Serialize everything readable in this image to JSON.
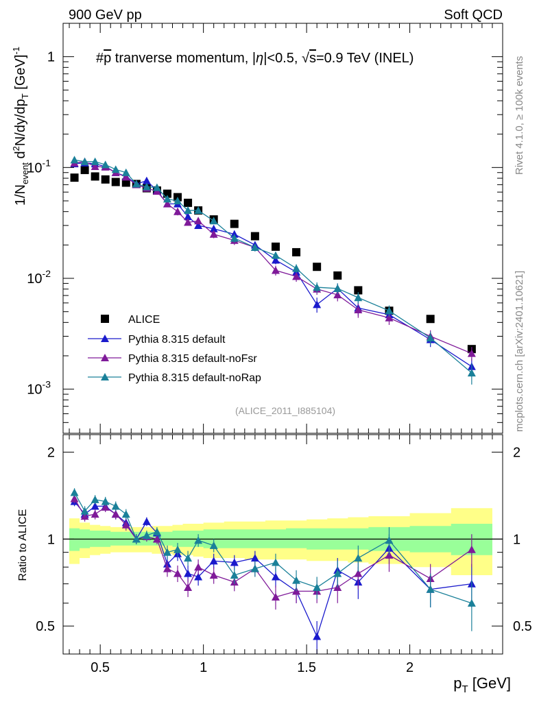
{
  "header": {
    "left": "900 GeV pp",
    "right": "Soft QCD"
  },
  "side_labels": {
    "rivet": "Rivet 4.1.0, ≥ 100k events",
    "mcplots": "mcplots.cern.ch [arXiv:2401.10621]"
  },
  "analysis_tag": "(ALICE_2011_I885104)",
  "colors": {
    "alice": "#000000",
    "default": "#1a1acc",
    "noFsr": "#7f1a99",
    "noRap": "#1a8099",
    "band_outer": "#ffff88",
    "band_inner": "#99ff99"
  },
  "chart_data": [
    {
      "type": "scatter",
      "title": "#p̄ tranverse momentum, |η|<0.5, √s=0.9 TeV (INEL)",
      "title_parts": {
        "prefix": "#",
        "p": "p",
        "mid1": " tranverse momentum, ",
        "eta": "η",
        "mid2": "|<0.5, ",
        "sqrt": "√",
        "s": "s",
        "suffix": "=0.9 TeV (INEL)"
      },
      "ylabel": "1/N_event d²N/dy/dp_T [GeV]⁻¹",
      "ylabel_parts": {
        "a": "1/N",
        "sub_a": "event",
        "b": " d",
        "sup_b": "2",
        "c": "N/dy/dp",
        "sub_c": "T",
        "d": " [GeV]",
        "sup_d": "-1"
      },
      "yscale": "log",
      "ylim": [
        0.0004,
        2.0
      ],
      "xlim": [
        0.32,
        2.45
      ],
      "ytick_labels": [
        {
          "value": 1,
          "base": "1",
          "exp": ""
        },
        {
          "value": 0.1,
          "base": "10",
          "exp": "-1"
        },
        {
          "value": 0.01,
          "base": "10",
          "exp": "-2"
        },
        {
          "value": 0.001,
          "base": "10",
          "exp": "-3"
        }
      ],
      "legend": [
        "ALICE",
        "Pythia 8.315 default",
        "Pythia 8.315 default-noFsr",
        "Pythia 8.315 default-noRap"
      ],
      "x": [
        0.375,
        0.425,
        0.475,
        0.525,
        0.575,
        0.625,
        0.675,
        0.725,
        0.775,
        0.825,
        0.875,
        0.925,
        0.975,
        1.05,
        1.15,
        1.25,
        1.35,
        1.45,
        1.55,
        1.65,
        1.75,
        1.9,
        2.1,
        2.3
      ],
      "series": [
        {
          "name": "ALICE",
          "marker": "square",
          "values": [
            0.081,
            0.095,
            0.083,
            0.078,
            0.074,
            0.073,
            0.071,
            0.065,
            0.062,
            0.058,
            0.054,
            0.048,
            0.041,
            0.034,
            0.031,
            0.024,
            0.0193,
            0.0172,
            0.0127,
            0.0106,
            0.0078,
            0.0051,
            0.0043,
            0.0023
          ]
        },
        {
          "name": "Pythia 8.315 default",
          "marker": "triangle",
          "values": [
            0.108,
            0.11,
            0.108,
            0.102,
            0.09,
            0.083,
            0.071,
            0.076,
            0.062,
            0.047,
            0.047,
            0.036,
            0.03,
            0.028,
            0.025,
            0.02,
            0.0146,
            0.0114,
            0.0058,
            0.0081,
            0.0054,
            0.0047,
            0.0028,
            0.0016
          ],
          "errors": [
            0.004,
            0.004,
            0.004,
            0.004,
            0.004,
            0.004,
            0.003,
            0.003,
            0.003,
            0.003,
            0.003,
            0.002,
            0.002,
            0.002,
            0.002,
            0.0015,
            0.0012,
            0.0011,
            0.0009,
            0.0009,
            0.0008,
            0.0006,
            0.0004,
            0.0003
          ]
        },
        {
          "name": "Pythia 8.315 default-noFsr",
          "marker": "triangle",
          "values": [
            0.11,
            0.113,
            0.102,
            0.101,
            0.09,
            0.082,
            0.07,
            0.065,
            0.061,
            0.047,
            0.04,
            0.032,
            0.033,
            0.025,
            0.022,
            0.019,
            0.0118,
            0.0104,
            0.008,
            0.0071,
            0.0052,
            0.0044,
            0.003,
            0.0021
          ],
          "errors": [
            0.004,
            0.004,
            0.004,
            0.004,
            0.004,
            0.004,
            0.003,
            0.003,
            0.003,
            0.003,
            0.003,
            0.002,
            0.002,
            0.002,
            0.002,
            0.0015,
            0.0012,
            0.0011,
            0.0009,
            0.0009,
            0.0008,
            0.0006,
            0.0004,
            0.0003
          ]
        },
        {
          "name": "Pythia 8.315 default-noRap",
          "marker": "triangle",
          "values": [
            0.117,
            0.113,
            0.113,
            0.106,
            0.096,
            0.09,
            0.071,
            0.067,
            0.066,
            0.052,
            0.05,
            0.041,
            0.041,
            0.033,
            0.023,
            0.019,
            0.0161,
            0.0123,
            0.0083,
            0.0081,
            0.0067,
            0.0051,
            0.0029,
            0.0014
          ],
          "errors": [
            0.004,
            0.004,
            0.004,
            0.004,
            0.004,
            0.004,
            0.003,
            0.003,
            0.003,
            0.003,
            0.003,
            0.002,
            0.002,
            0.002,
            0.002,
            0.0015,
            0.0012,
            0.0011,
            0.0009,
            0.0009,
            0.0008,
            0.0006,
            0.0004,
            0.0003
          ]
        }
      ]
    },
    {
      "type": "scatter",
      "title": "",
      "ylabel": "Ratio to ALICE",
      "xlabel": "p_T [GeV]",
      "xlabel_parts": {
        "p": "p",
        "sub": "T",
        "unit": " [GeV]"
      },
      "yscale": "log",
      "ylim": [
        0.4,
        2.3
      ],
      "xlim": [
        0.32,
        2.45
      ],
      "xtick_labels": [
        "0.5",
        "1",
        "1.5",
        "2"
      ],
      "ytick_labels": [
        "0.5",
        "1",
        "2"
      ],
      "reference_line": 1.0,
      "band_x_edges": [
        0.35,
        0.4,
        0.45,
        0.5,
        0.55,
        0.6,
        0.65,
        0.7,
        0.75,
        0.8,
        0.85,
        0.9,
        0.95,
        1.0,
        1.1,
        1.2,
        1.3,
        1.4,
        1.5,
        1.6,
        1.7,
        1.8,
        2.0,
        2.2,
        2.4
      ],
      "band_inner": {
        "low": [
          0.91,
          0.93,
          0.94,
          0.94,
          0.95,
          0.95,
          0.95,
          0.95,
          0.95,
          0.95,
          0.94,
          0.94,
          0.94,
          0.93,
          0.93,
          0.93,
          0.93,
          0.93,
          0.92,
          0.92,
          0.92,
          0.91,
          0.9,
          0.88
        ],
        "high": [
          1.09,
          1.08,
          1.07,
          1.07,
          1.06,
          1.06,
          1.06,
          1.06,
          1.06,
          1.06,
          1.07,
          1.07,
          1.07,
          1.08,
          1.08,
          1.08,
          1.08,
          1.09,
          1.09,
          1.09,
          1.09,
          1.1,
          1.11,
          1.13
        ]
      },
      "band_outer": {
        "low": [
          0.82,
          0.86,
          0.88,
          0.89,
          0.9,
          0.9,
          0.9,
          0.9,
          0.89,
          0.89,
          0.88,
          0.88,
          0.87,
          0.86,
          0.86,
          0.85,
          0.85,
          0.85,
          0.84,
          0.84,
          0.83,
          0.82,
          0.8,
          0.75
        ],
        "high": [
          1.18,
          1.14,
          1.12,
          1.11,
          1.1,
          1.1,
          1.1,
          1.1,
          1.11,
          1.11,
          1.12,
          1.13,
          1.13,
          1.14,
          1.15,
          1.15,
          1.16,
          1.16,
          1.17,
          1.18,
          1.19,
          1.2,
          1.23,
          1.28
        ]
      },
      "x": [
        0.375,
        0.425,
        0.475,
        0.525,
        0.575,
        0.625,
        0.675,
        0.725,
        0.775,
        0.825,
        0.875,
        0.925,
        0.975,
        1.05,
        1.15,
        1.25,
        1.35,
        1.45,
        1.55,
        1.65,
        1.75,
        1.9,
        2.1,
        2.3
      ],
      "series": [
        {
          "name": "Pythia 8.315 default",
          "values": [
            1.35,
            1.22,
            1.3,
            1.3,
            1.22,
            1.14,
            1.0,
            1.15,
            1.05,
            0.82,
            0.89,
            0.76,
            0.74,
            0.84,
            0.83,
            0.86,
            0.74,
            0.66,
            0.46,
            0.78,
            0.71,
            0.93,
            0.67,
            0.7
          ],
          "errors": [
            0.05,
            0.05,
            0.05,
            0.05,
            0.05,
            0.05,
            0.04,
            0.04,
            0.04,
            0.05,
            0.05,
            0.05,
            0.05,
            0.05,
            0.05,
            0.05,
            0.06,
            0.06,
            0.06,
            0.08,
            0.09,
            0.11,
            0.09,
            0.12
          ]
        },
        {
          "name": "Pythia 8.315 default-noFsr",
          "values": [
            1.38,
            1.2,
            1.22,
            1.29,
            1.22,
            1.12,
            1.0,
            1.02,
            1.0,
            0.79,
            0.76,
            0.68,
            0.8,
            0.75,
            0.71,
            0.79,
            0.63,
            0.66,
            0.66,
            0.68,
            0.76,
            0.88,
            0.73,
            0.92
          ],
          "errors": [
            0.05,
            0.05,
            0.05,
            0.05,
            0.05,
            0.05,
            0.04,
            0.04,
            0.04,
            0.05,
            0.05,
            0.05,
            0.05,
            0.05,
            0.05,
            0.05,
            0.06,
            0.06,
            0.06,
            0.08,
            0.09,
            0.11,
            0.09,
            0.12
          ]
        },
        {
          "name": "Pythia 8.315 default-noRap",
          "values": [
            1.45,
            1.25,
            1.37,
            1.35,
            1.3,
            1.22,
            1.0,
            1.03,
            1.06,
            0.9,
            0.92,
            0.86,
            0.99,
            0.95,
            0.75,
            0.79,
            0.83,
            0.72,
            0.68,
            0.76,
            0.86,
            0.99,
            0.67,
            0.6
          ],
          "errors": [
            0.05,
            0.05,
            0.05,
            0.05,
            0.05,
            0.05,
            0.04,
            0.04,
            0.04,
            0.05,
            0.05,
            0.05,
            0.05,
            0.05,
            0.05,
            0.05,
            0.06,
            0.06,
            0.06,
            0.08,
            0.09,
            0.11,
            0.09,
            0.12
          ]
        }
      ]
    }
  ]
}
